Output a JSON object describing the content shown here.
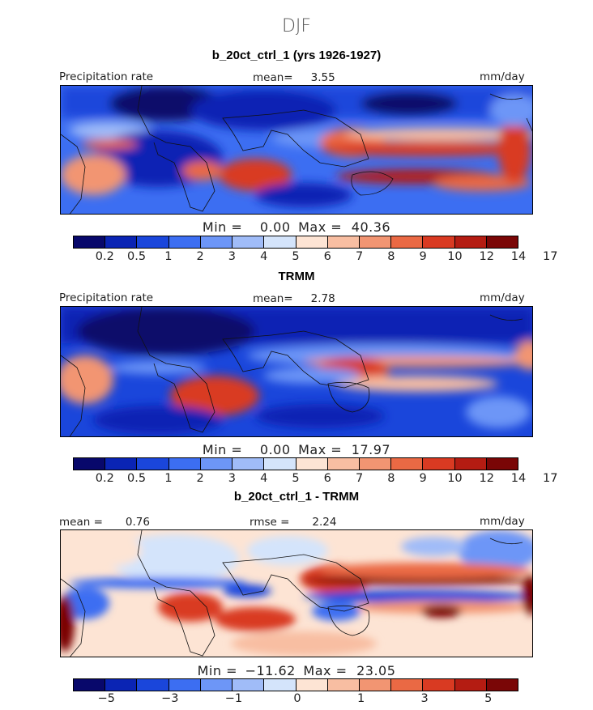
{
  "figure": {
    "season": "DJF",
    "colors": [
      "#08086b",
      "#0a24b4",
      "#1a46db",
      "#3c6ef2",
      "#6d96f7",
      "#a0bcf8",
      "#d4e4fb",
      "#fde4d4",
      "#f8bea2",
      "#f29572",
      "#ea6944",
      "#d93a22",
      "#b41c12",
      "#7a0606"
    ]
  },
  "chart_data": [
    {
      "type": "heatmap",
      "title": "b_20ct_ctrl_1 (yrs 1926-1927)",
      "variable": "Precipitation rate",
      "units": "mm/day",
      "mean_label": "mean=",
      "mean": "3.55",
      "min_label": "Min =",
      "min": "0.00",
      "max_label": "Max =",
      "max": "40.36",
      "colorbar_levels": [
        "0.2",
        "0.5",
        "1",
        "2",
        "3",
        "4",
        "5",
        "6",
        "7",
        "8",
        "9",
        "10",
        "12",
        "14",
        "17"
      ]
    },
    {
      "type": "heatmap",
      "title": "TRMM",
      "variable": "Precipitation rate",
      "units": "mm/day",
      "mean_label": "mean=",
      "mean": "2.78",
      "min_label": "Min =",
      "min": "0.00",
      "max_label": "Max =",
      "max": "17.97",
      "colorbar_levels": [
        "0.2",
        "0.5",
        "1",
        "2",
        "3",
        "4",
        "5",
        "6",
        "7",
        "8",
        "9",
        "10",
        "12",
        "14",
        "17"
      ]
    },
    {
      "type": "heatmap",
      "title": "b_20ct_ctrl_1 - TRMM",
      "units": "mm/day",
      "mean_label": "mean =",
      "mean": "0.76",
      "rmse_label": "rmse =",
      "rmse": "2.24",
      "min_label": "Min =",
      "min": "−11.62",
      "max_label": "Max =",
      "max": "23.05",
      "colorbar_levels": [
        "−5",
        "−3",
        "−1",
        "0",
        "1",
        "3",
        "5"
      ]
    }
  ]
}
